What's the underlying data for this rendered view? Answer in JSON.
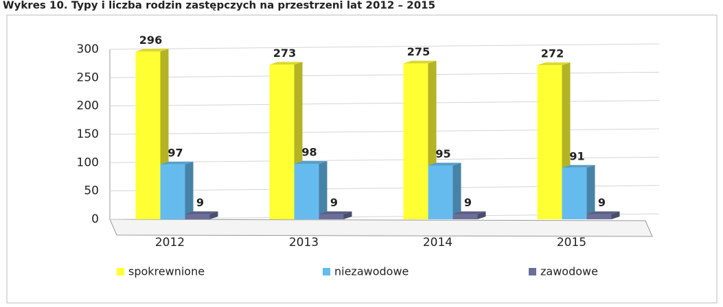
{
  "chart_data": {
    "type": "bar",
    "title": "Wykres 10. Typy i liczba rodzin zastępczych na przestrzeni lat 2012 – 2015",
    "categories": [
      "2012",
      "2013",
      "2014",
      "2015"
    ],
    "series": [
      {
        "name": "spokrewnione",
        "color": "#ffff33",
        "values": [
          296,
          273,
          275,
          272
        ]
      },
      {
        "name": "niezawodowe",
        "color": "#66bbee",
        "values": [
          97,
          98,
          95,
          91
        ]
      },
      {
        "name": "zawodowe",
        "color": "#6a6f9a",
        "values": [
          9,
          9,
          9,
          9
        ]
      }
    ],
    "ylim": [
      0,
      300
    ],
    "yticks": [
      0,
      50,
      100,
      150,
      200,
      250,
      300
    ],
    "grid": true,
    "legend": "bottom"
  }
}
